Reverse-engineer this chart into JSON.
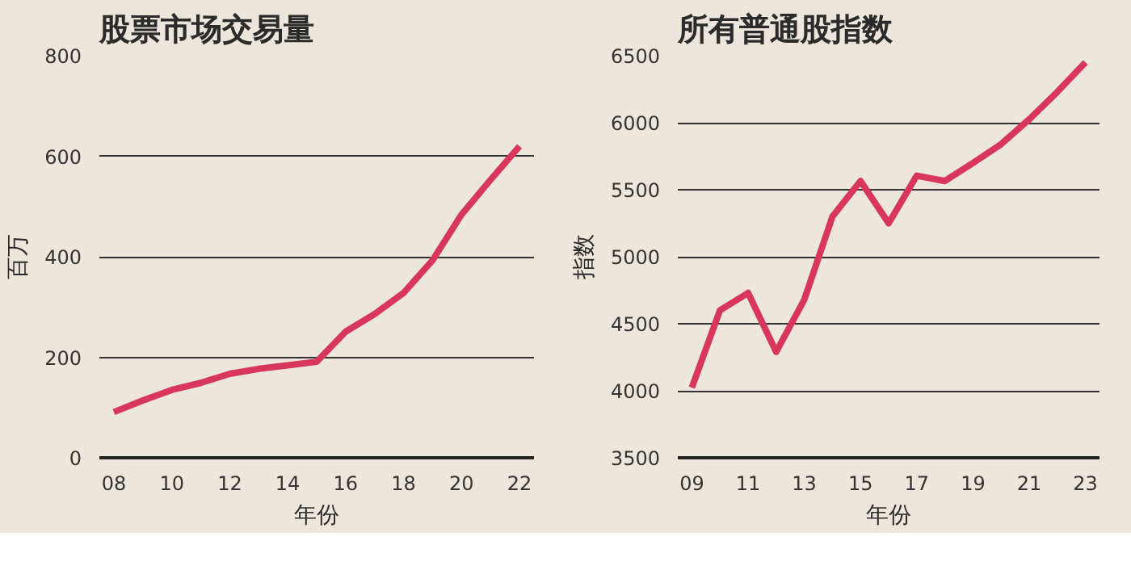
{
  "chart_data": [
    {
      "type": "line",
      "title": "股票市场交易量",
      "xlabel": "年份",
      "ylabel": "百万",
      "x": [
        2008,
        2009,
        2010,
        2011,
        2012,
        2013,
        2014,
        2015,
        2016,
        2017,
        2018,
        2019,
        2020,
        2021,
        2022
      ],
      "series": [
        {
          "color": "#d8365b",
          "values": [
            91,
            114,
            135,
            149,
            167,
            177,
            184,
            191,
            251,
            286,
            328,
            393,
            484,
            553,
            620
          ]
        }
      ],
      "xlim": [
        2007.5,
        2022.5
      ],
      "ylim": [
        0,
        800
      ],
      "xticks": [
        {
          "value": 2008,
          "label": "08"
        },
        {
          "value": 2010,
          "label": "10"
        },
        {
          "value": 2012,
          "label": "12"
        },
        {
          "value": 2014,
          "label": "14"
        },
        {
          "value": 2016,
          "label": "16"
        },
        {
          "value": 2018,
          "label": "18"
        },
        {
          "value": 2020,
          "label": "20"
        },
        {
          "value": 2022,
          "label": "22"
        }
      ],
      "yticks": [
        0,
        200,
        400,
        600,
        800
      ],
      "grid": "y",
      "marker": "none",
      "line_style": "solid"
    },
    {
      "type": "line",
      "title": "所有普通股指数",
      "xlabel": "年份",
      "ylabel": "指数",
      "x": [
        2009,
        2010,
        2011,
        2012,
        2013,
        2014,
        2015,
        2016,
        2017,
        2018,
        2019,
        2020,
        2021,
        2022,
        2023
      ],
      "series": [
        {
          "color": "#d8365b",
          "values": [
            4024,
            4600,
            4730,
            4290,
            4680,
            5300,
            5565,
            5250,
            5605,
            5565,
            5700,
            5840,
            6025,
            6230,
            6450
          ]
        }
      ],
      "xlim": [
        2008.5,
        2023.5
      ],
      "ylim": [
        3500,
        6500
      ],
      "xticks": [
        {
          "value": 2009,
          "label": "09"
        },
        {
          "value": 2011,
          "label": "11"
        },
        {
          "value": 2013,
          "label": "13"
        },
        {
          "value": 2015,
          "label": "15"
        },
        {
          "value": 2017,
          "label": "17"
        },
        {
          "value": 2019,
          "label": "19"
        },
        {
          "value": 2021,
          "label": "21"
        },
        {
          "value": 2023,
          "label": "23"
        }
      ],
      "yticks": [
        3500,
        4000,
        4500,
        5000,
        5500,
        6000,
        6500
      ],
      "grid": "y",
      "marker": "none",
      "line_style": "solid"
    }
  ]
}
